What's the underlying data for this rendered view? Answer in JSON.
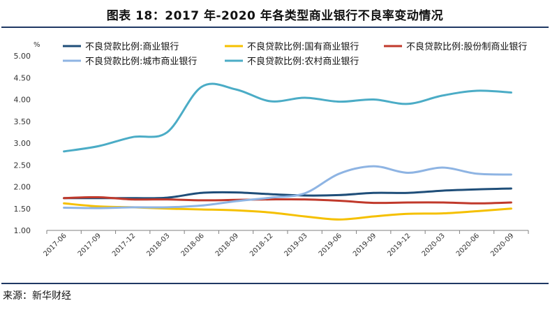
{
  "figure": {
    "title": "图表 18：2017 年-2020 年各类型商业银行不良率变动情况",
    "source": "来源：新华财经"
  },
  "colors": {
    "rule": "#1f3864"
  },
  "chart_data": {
    "type": "line",
    "title": "",
    "xlabel": "",
    "ylabel": "%",
    "ylim": [
      1.0,
      5.0
    ],
    "yticks": [
      "5.00",
      "4.50",
      "4.00",
      "3.50",
      "3.00",
      "2.50",
      "2.00",
      "1.50",
      "1.00"
    ],
    "categories": [
      "2017-06",
      "2017-09",
      "2017-12",
      "2018-03",
      "2018-06",
      "2018-09",
      "2018-12",
      "2019-03",
      "2019-06",
      "2019-09",
      "2019-12",
      "2020-03",
      "2020-06",
      "2020-09"
    ],
    "grid": false,
    "legend_position": "top",
    "series": [
      {
        "name": "不良贷款比例:商业银行",
        "color": "#1f4e79",
        "values": [
          1.74,
          1.74,
          1.74,
          1.75,
          1.86,
          1.87,
          1.83,
          1.8,
          1.81,
          1.86,
          1.86,
          1.91,
          1.94,
          1.96
        ]
      },
      {
        "name": "不良贷款比例:国有商业银行",
        "color": "#f5c000",
        "values": [
          1.62,
          1.55,
          1.53,
          1.5,
          1.48,
          1.46,
          1.41,
          1.32,
          1.25,
          1.32,
          1.38,
          1.39,
          1.44,
          1.5
        ]
      },
      {
        "name": "不良贷款比例:股份制商业银行",
        "color": "#c0392b",
        "values": [
          1.74,
          1.76,
          1.71,
          1.71,
          1.69,
          1.7,
          1.71,
          1.71,
          1.68,
          1.63,
          1.64,
          1.64,
          1.62,
          1.64
        ]
      },
      {
        "name": "不良贷款比例:城市商业银行",
        "color": "#8eb4e3",
        "values": [
          1.52,
          1.51,
          1.53,
          1.53,
          1.57,
          1.67,
          1.75,
          1.85,
          2.3,
          2.47,
          2.32,
          2.44,
          2.3,
          2.28
        ]
      },
      {
        "name": "不良贷款比例:农村商业银行",
        "color": "#4bacc6",
        "values": [
          2.81,
          2.93,
          3.14,
          3.25,
          4.29,
          4.23,
          3.96,
          4.04,
          3.95,
          4.0,
          3.9,
          4.09,
          4.2,
          4.16
        ]
      }
    ]
  }
}
